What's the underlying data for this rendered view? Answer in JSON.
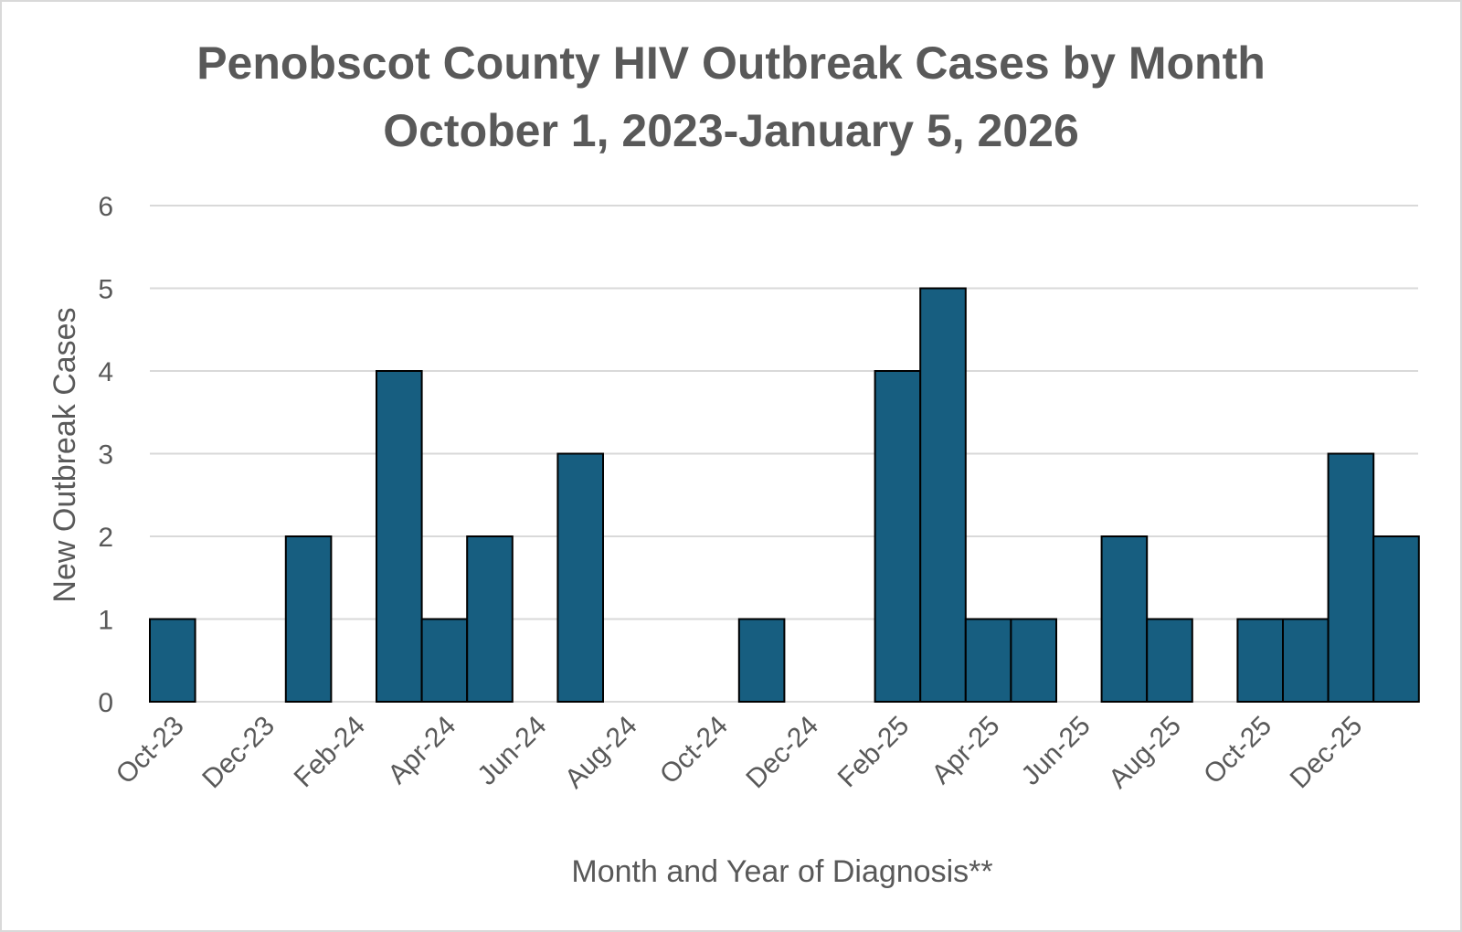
{
  "chart_data": {
    "type": "bar",
    "title_line1": "Penobscot County HIV Outbreak Cases by Month",
    "title_line2": "October 1, 2023-January 5, 2026",
    "xlabel": "Month and Year of Diagnosis**",
    "ylabel": "New Outbreak Cases",
    "ylim": [
      0,
      6
    ],
    "yticks": [
      0,
      1,
      2,
      3,
      4,
      5,
      6
    ],
    "grid": true,
    "categories": [
      "Oct-23",
      "Nov-23",
      "Dec-23",
      "Jan-24",
      "Feb-24",
      "Mar-24",
      "Apr-24",
      "May-24",
      "Jun-24",
      "Jul-24",
      "Aug-24",
      "Sep-24",
      "Oct-24",
      "Nov-24",
      "Dec-24",
      "Jan-25",
      "Feb-25",
      "Mar-25",
      "Apr-25",
      "May-25",
      "Jun-25",
      "Jul-25",
      "Aug-25",
      "Sep-25",
      "Oct-25",
      "Nov-25",
      "Dec-25",
      "Jan-26"
    ],
    "tick_labels": [
      "Oct-23",
      "Dec-23",
      "Feb-24",
      "Apr-24",
      "Jun-24",
      "Aug-24",
      "Oct-24",
      "Dec-24",
      "Feb-25",
      "Apr-25",
      "Jun-25",
      "Aug-25",
      "Oct-25",
      "Dec-25"
    ],
    "values": [
      1,
      0,
      0,
      2,
      0,
      4,
      1,
      2,
      0,
      3,
      0,
      0,
      0,
      1,
      0,
      0,
      4,
      5,
      1,
      1,
      0,
      2,
      1,
      0,
      1,
      1,
      3,
      2
    ],
    "bar_color": "#175E80",
    "bar_edge_color": "#000000",
    "grid_color": "#d9d9d9"
  }
}
